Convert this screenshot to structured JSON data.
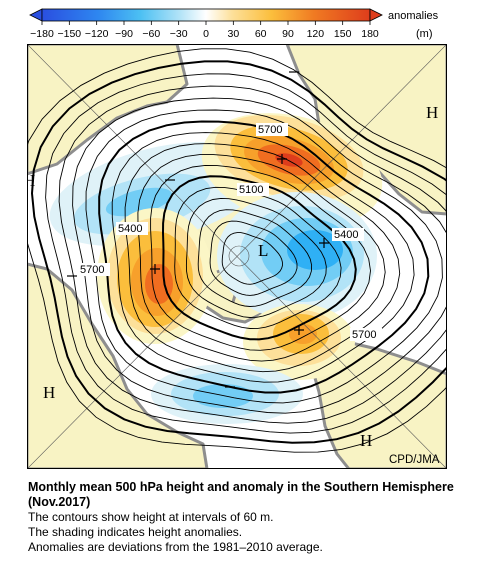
{
  "colorbar": {
    "tick_labels": [
      "-180",
      "-150",
      "-120",
      "-90",
      "-60",
      "-30",
      "0",
      "30",
      "60",
      "90",
      "120",
      "150",
      "180"
    ],
    "unit_label": "anomalies",
    "unit_sub": "(m)",
    "colors": [
      "#2a4fe0",
      "#2e86f0",
      "#2fb0f5",
      "#72cdf5",
      "#b2e3f7",
      "#dff2f8",
      "#fbf6c6",
      "#fde09a",
      "#fbbe3c",
      "#f7a02b",
      "#f06d20",
      "#de3d1c"
    ]
  },
  "map": {
    "contour_labels": [
      "5700",
      "5100",
      "5400",
      "5400",
      "5700",
      "5700"
    ],
    "high_labels": [
      "H",
      "H",
      "H",
      "H"
    ],
    "low_labels": [
      "L"
    ],
    "credit": "CPD/JMA",
    "colors": {
      "land": "#f8f3c4",
      "coast": "#8e8e8e",
      "contour": "#000000"
    }
  },
  "caption": {
    "title": "Monthly mean 500 hPa height and anomaly in the Southern Hemisphere (Nov.2017)",
    "lines": [
      "The contours show height at intervals of 60 m.",
      "The shading indicates height anomalies.",
      "Anomalies are deviations from the 1981–2010 average."
    ]
  }
}
